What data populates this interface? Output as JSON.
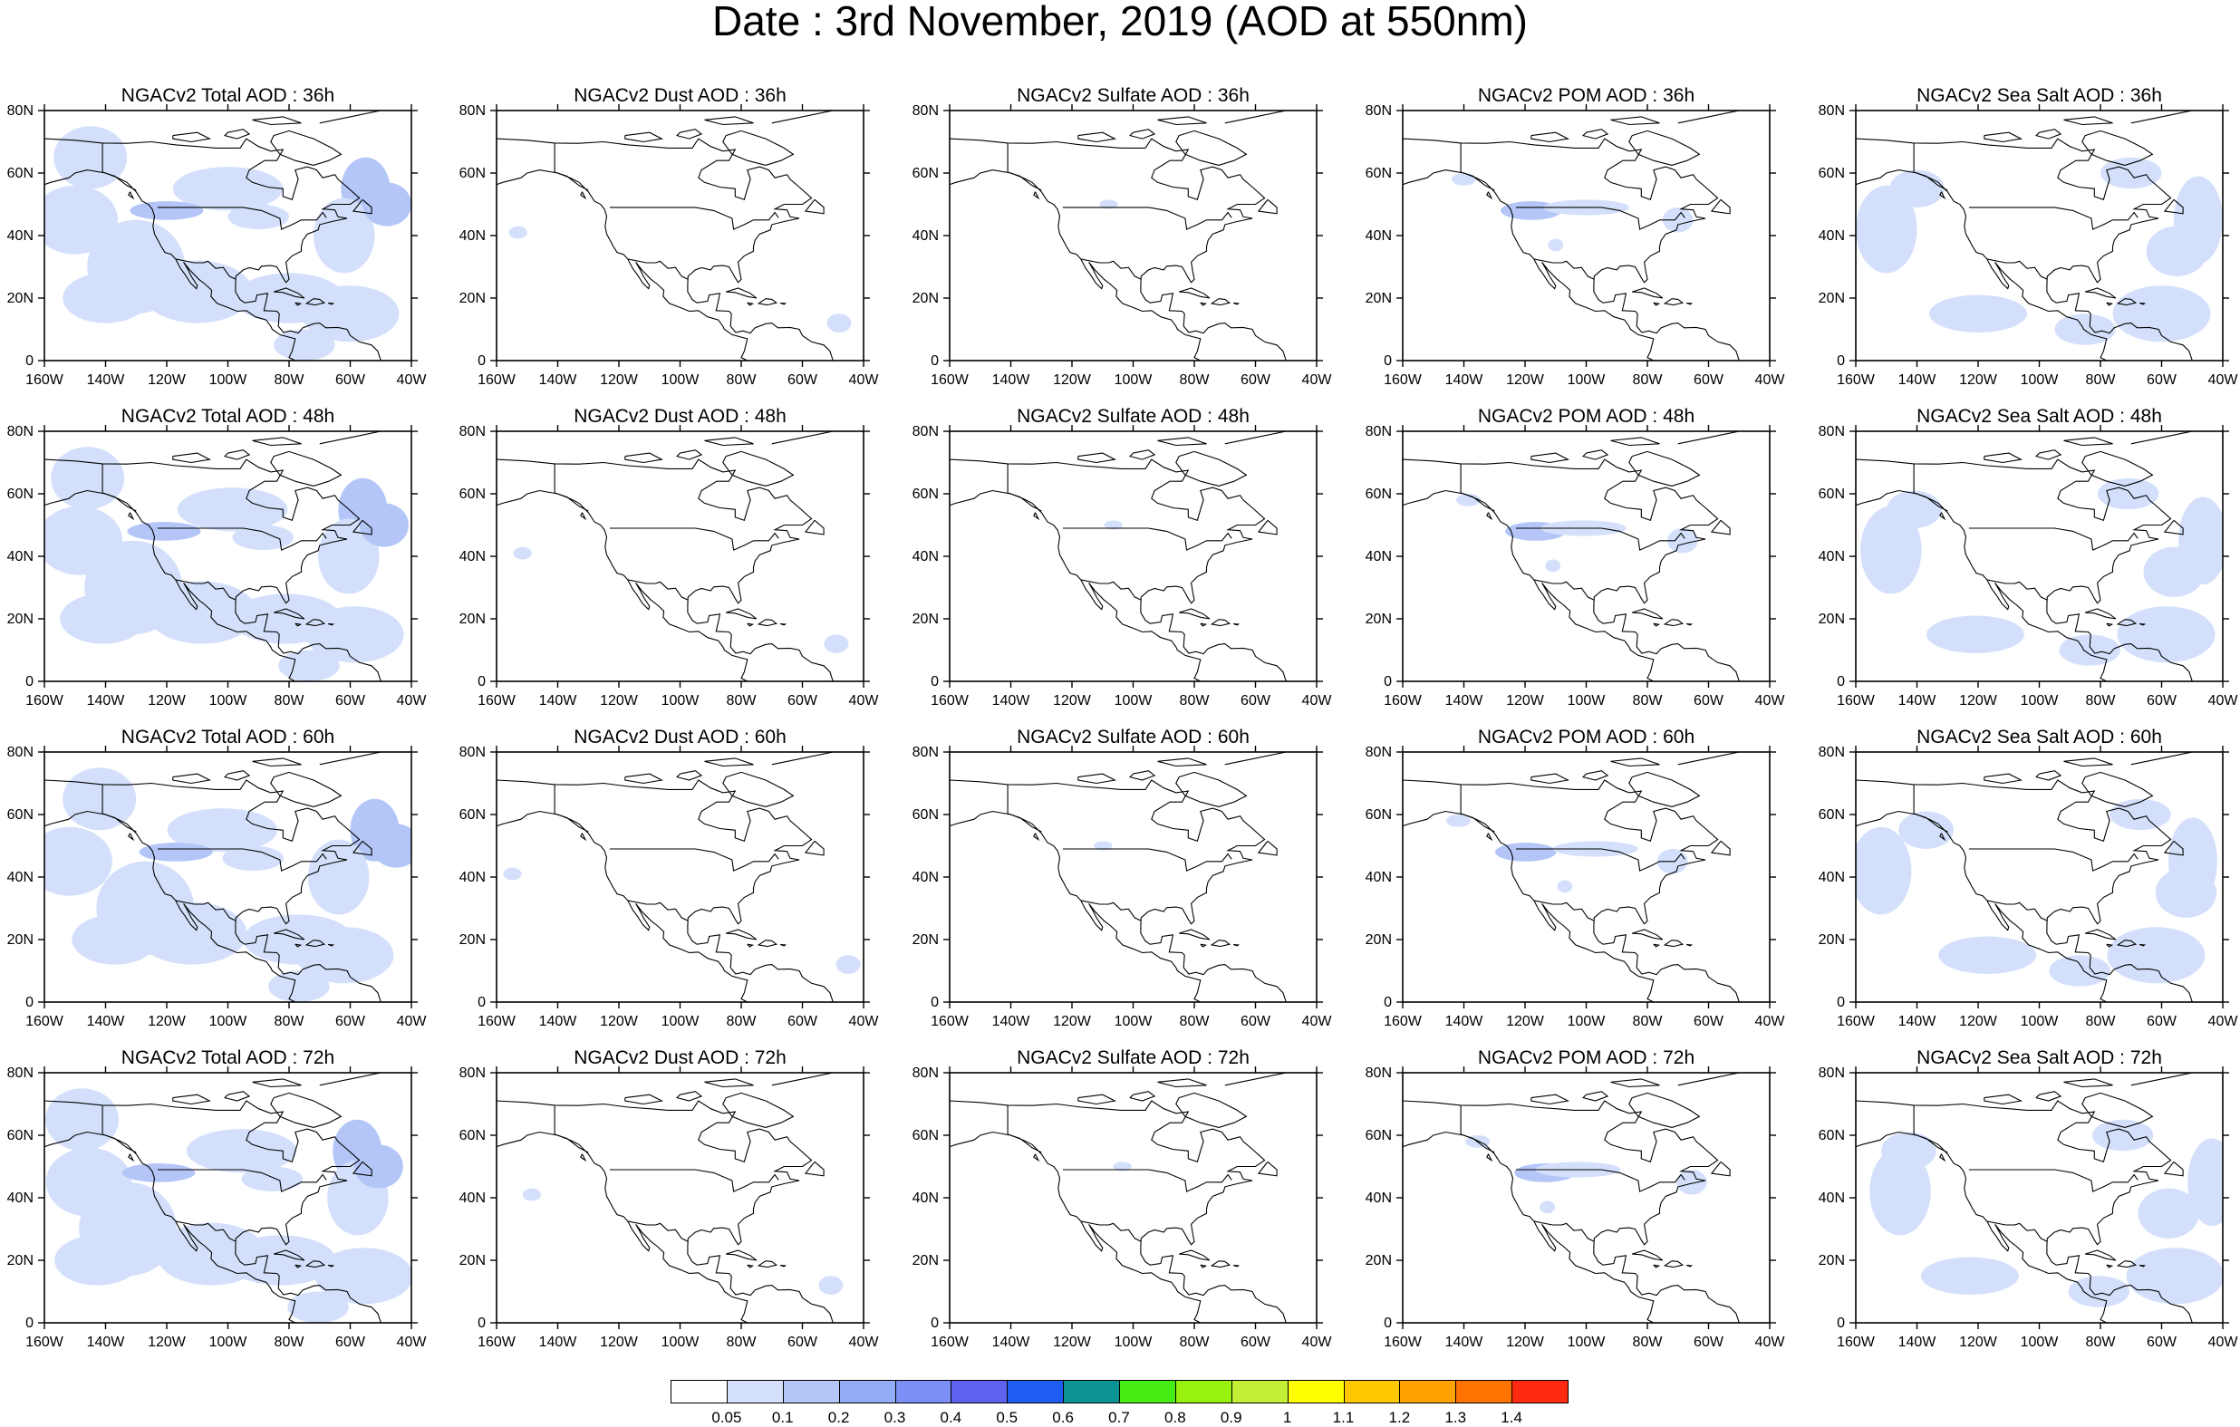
{
  "title": "Date : 3rd November, 2019 (AOD at 550nm)",
  "panel_titles": [
    [
      "NGACv2 Total AOD : 36h",
      "NGACv2 Dust AOD : 36h",
      "NGACv2 Sulfate AOD : 36h",
      "NGACv2 POM AOD : 36h",
      "NGACv2 Sea Salt AOD : 36h"
    ],
    [
      "NGACv2 Total AOD : 48h",
      "NGACv2 Dust AOD : 48h",
      "NGACv2 Sulfate AOD : 48h",
      "NGACv2 POM AOD : 48h",
      "NGACv2 Sea Salt AOD : 48h"
    ],
    [
      "NGACv2 Total AOD : 60h",
      "NGACv2 Dust AOD : 60h",
      "NGACv2 Sulfate AOD : 60h",
      "NGACv2 POM AOD : 60h",
      "NGACv2 Sea Salt AOD : 60h"
    ],
    [
      "NGACv2 Total AOD : 72h",
      "NGACv2 Dust AOD : 72h",
      "NGACv2 Sulfate AOD : 72h",
      "NGACv2 POM AOD : 72h",
      "NGACv2 Sea Salt  AOD : 72h"
    ]
  ],
  "lon_ticks": [
    "160W",
    "140W",
    "120W",
    "100W",
    "80W",
    "60W",
    "40W"
  ],
  "lat_ticks": [
    "0",
    "20N",
    "40N",
    "60N",
    "80N"
  ],
  "map_extent": {
    "lon": [
      -160,
      -40
    ],
    "lat": [
      0,
      80
    ]
  },
  "colorbar": {
    "labels": [
      "0.05",
      "0.1",
      "0.2",
      "0.3",
      "0.4",
      "0.5",
      "0.6",
      "0.7",
      "0.8",
      "0.9",
      "1",
      "1.1",
      "1.2",
      "1.3",
      "1.4"
    ],
    "colors": [
      "#ffffff",
      "#d4e0fb",
      "#b4c6f8",
      "#93acf6",
      "#7b8ff4",
      "#5f62ee",
      "#1f5cf2",
      "#0c9393",
      "#47ee15",
      "#98f20e",
      "#c5ef37",
      "#ffff00",
      "#ffc800",
      "#ffa200",
      "#ff7300",
      "#ff2a10"
    ]
  }
}
